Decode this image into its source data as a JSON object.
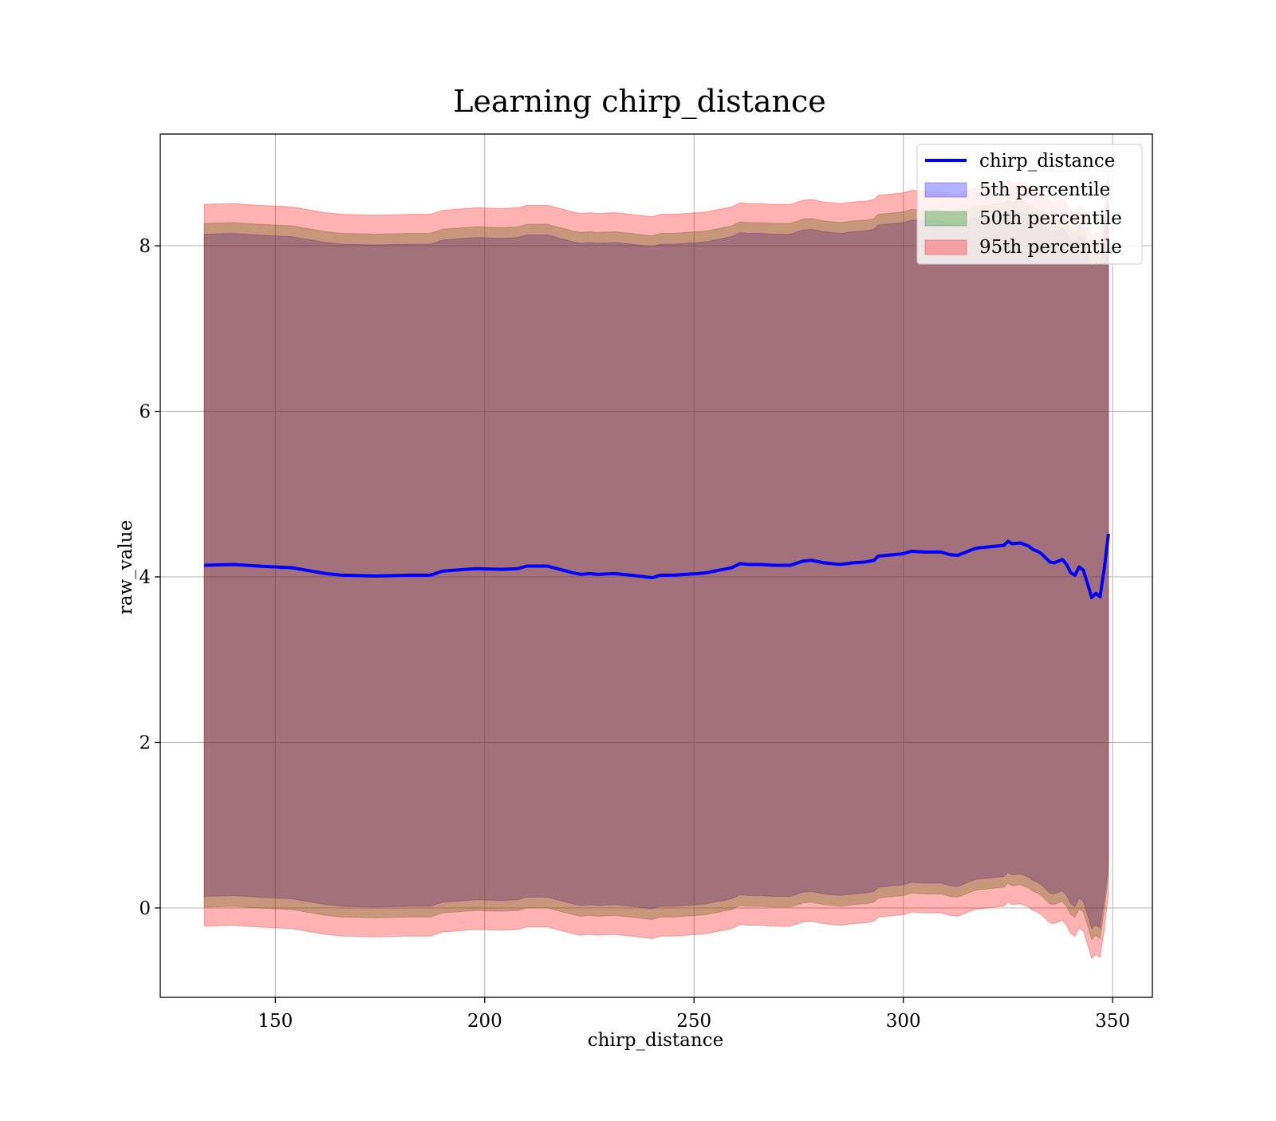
{
  "chart_data": {
    "type": "area",
    "title": "Learning chirp_distance",
    "xlabel": "chirp_distance",
    "ylabel": "raw_value",
    "xlim": [
      122.5,
      359.5
    ],
    "ylim": [
      -1.08,
      9.35
    ],
    "xticks": [
      150,
      200,
      250,
      300,
      350
    ],
    "yticks": [
      0,
      2,
      4,
      6,
      8
    ],
    "grid": true,
    "legend_position": "top-right",
    "x": [
      133,
      140,
      146,
      154,
      162,
      166,
      174,
      182,
      187,
      190,
      198,
      204,
      208,
      210,
      215,
      221,
      223,
      225,
      227,
      231,
      235,
      240,
      242,
      245,
      251,
      253,
      256,
      259,
      261,
      263,
      266,
      269,
      273,
      276,
      278,
      281,
      285,
      288,
      291,
      293,
      294,
      296,
      300,
      302,
      305,
      307,
      309,
      311,
      313,
      315,
      317,
      318,
      320,
      322,
      324,
      325,
      326,
      328,
      330,
      331,
      332,
      333,
      335,
      336,
      338,
      339,
      340,
      341,
      342,
      343,
      344,
      345,
      346,
      347,
      348,
      349
    ],
    "series": [
      {
        "name": "chirp_distance",
        "color": "#0000ff",
        "values": [
          4.14,
          4.15,
          4.13,
          4.11,
          4.04,
          4.02,
          4.01,
          4.02,
          4.02,
          4.07,
          4.1,
          4.09,
          4.1,
          4.13,
          4.13,
          4.05,
          4.03,
          4.04,
          4.03,
          4.04,
          4.02,
          3.99,
          4.02,
          4.02,
          4.04,
          4.05,
          4.08,
          4.11,
          4.16,
          4.15,
          4.15,
          4.14,
          4.14,
          4.19,
          4.2,
          4.17,
          4.15,
          4.17,
          4.18,
          4.2,
          4.25,
          4.26,
          4.28,
          4.31,
          4.3,
          4.3,
          4.3,
          4.27,
          4.26,
          4.3,
          4.34,
          4.35,
          4.36,
          4.37,
          4.38,
          4.43,
          4.4,
          4.41,
          4.37,
          4.33,
          4.31,
          4.28,
          4.18,
          4.17,
          4.21,
          4.15,
          4.05,
          4.02,
          4.12,
          4.08,
          3.92,
          3.75,
          3.8,
          3.76,
          4.1,
          4.52
        ]
      }
    ],
    "bands": [
      {
        "name": "5th percentile",
        "color": "#0000ff",
        "lower": [
          0.14,
          0.15,
          0.13,
          0.11,
          0.04,
          0.02,
          0.01,
          0.02,
          0.02,
          0.07,
          0.1,
          0.09,
          0.1,
          0.13,
          0.13,
          0.05,
          0.03,
          0.04,
          0.03,
          0.04,
          0.02,
          -0.01,
          0.02,
          0.02,
          0.04,
          0.05,
          0.08,
          0.11,
          0.16,
          0.15,
          0.15,
          0.14,
          0.14,
          0.19,
          0.2,
          0.17,
          0.15,
          0.17,
          0.18,
          0.2,
          0.25,
          0.26,
          0.28,
          0.31,
          0.3,
          0.3,
          0.3,
          0.27,
          0.26,
          0.3,
          0.34,
          0.35,
          0.36,
          0.37,
          0.38,
          0.43,
          0.4,
          0.41,
          0.37,
          0.33,
          0.31,
          0.28,
          0.18,
          0.17,
          0.21,
          0.15,
          0.05,
          0.02,
          0.12,
          0.08,
          -0.08,
          -0.25,
          -0.2,
          -0.24,
          0.1,
          0.52
        ],
        "upper": [
          8.14,
          8.15,
          8.13,
          8.11,
          8.04,
          8.02,
          8.01,
          8.02,
          8.02,
          8.07,
          8.1,
          8.09,
          8.1,
          8.13,
          8.13,
          8.05,
          8.03,
          8.04,
          8.03,
          8.04,
          8.02,
          7.99,
          8.02,
          8.02,
          8.04,
          8.05,
          8.08,
          8.11,
          8.16,
          8.15,
          8.15,
          8.14,
          8.14,
          8.19,
          8.2,
          8.17,
          8.15,
          8.17,
          8.18,
          8.2,
          8.25,
          8.26,
          8.28,
          8.31,
          8.3,
          8.3,
          8.3,
          8.27,
          8.26,
          8.3,
          8.34,
          8.35,
          8.36,
          8.37,
          8.38,
          8.43,
          8.4,
          8.41,
          8.37,
          8.33,
          8.31,
          8.28,
          8.18,
          8.17,
          8.21,
          8.15,
          8.05,
          8.02,
          8.12,
          8.08,
          7.92,
          7.75,
          7.8,
          7.76,
          8.1,
          8.52
        ]
      },
      {
        "name": "50th percentile",
        "color": "#008000",
        "lower": [
          0.01,
          0.02,
          0.0,
          -0.02,
          -0.09,
          -0.11,
          -0.12,
          -0.11,
          -0.11,
          -0.06,
          -0.03,
          -0.04,
          -0.03,
          0.0,
          0.0,
          -0.08,
          -0.1,
          -0.09,
          -0.1,
          -0.09,
          -0.11,
          -0.14,
          -0.11,
          -0.11,
          -0.09,
          -0.08,
          -0.05,
          -0.02,
          0.03,
          0.02,
          0.02,
          0.01,
          0.01,
          0.06,
          0.07,
          0.04,
          0.02,
          0.04,
          0.05,
          0.07,
          0.12,
          0.13,
          0.15,
          0.18,
          0.17,
          0.17,
          0.17,
          0.14,
          0.13,
          0.17,
          0.21,
          0.22,
          0.23,
          0.24,
          0.25,
          0.3,
          0.27,
          0.28,
          0.24,
          0.2,
          0.18,
          0.15,
          0.05,
          0.04,
          0.08,
          0.02,
          -0.08,
          -0.11,
          -0.01,
          -0.05,
          -0.21,
          -0.38,
          -0.33,
          -0.37,
          -0.03,
          0.39
        ],
        "upper": [
          8.27,
          8.28,
          8.26,
          8.24,
          8.17,
          8.15,
          8.14,
          8.15,
          8.15,
          8.2,
          8.23,
          8.22,
          8.23,
          8.26,
          8.26,
          8.18,
          8.16,
          8.17,
          8.16,
          8.17,
          8.15,
          8.12,
          8.15,
          8.15,
          8.17,
          8.18,
          8.21,
          8.24,
          8.29,
          8.28,
          8.28,
          8.27,
          8.27,
          8.32,
          8.33,
          8.3,
          8.28,
          8.3,
          8.31,
          8.33,
          8.38,
          8.39,
          8.41,
          8.44,
          8.43,
          8.43,
          8.43,
          8.4,
          8.39,
          8.43,
          8.47,
          8.48,
          8.49,
          8.5,
          8.51,
          8.56,
          8.53,
          8.54,
          8.5,
          8.46,
          8.44,
          8.41,
          8.31,
          8.3,
          8.34,
          8.28,
          8.18,
          8.15,
          8.25,
          8.21,
          8.05,
          7.88,
          7.93,
          7.89,
          8.23,
          8.65
        ]
      },
      {
        "name": "95th percentile",
        "color": "#ff0000",
        "lower": [
          -0.22,
          -0.21,
          -0.23,
          -0.25,
          -0.32,
          -0.34,
          -0.35,
          -0.34,
          -0.34,
          -0.29,
          -0.26,
          -0.27,
          -0.26,
          -0.23,
          -0.23,
          -0.31,
          -0.33,
          -0.32,
          -0.33,
          -0.32,
          -0.34,
          -0.37,
          -0.34,
          -0.34,
          -0.32,
          -0.31,
          -0.28,
          -0.25,
          -0.2,
          -0.21,
          -0.21,
          -0.22,
          -0.22,
          -0.17,
          -0.16,
          -0.19,
          -0.21,
          -0.19,
          -0.18,
          -0.16,
          -0.11,
          -0.1,
          -0.08,
          -0.05,
          -0.06,
          -0.06,
          -0.06,
          -0.09,
          -0.1,
          -0.06,
          -0.02,
          -0.01,
          0.0,
          0.01,
          0.02,
          0.07,
          0.04,
          0.05,
          0.01,
          -0.03,
          -0.05,
          -0.08,
          -0.18,
          -0.19,
          -0.15,
          -0.21,
          -0.31,
          -0.34,
          -0.24,
          -0.28,
          -0.44,
          -0.61,
          -0.56,
          -0.6,
          -0.26,
          0.16
        ],
        "upper": [
          8.5,
          8.51,
          8.49,
          8.47,
          8.4,
          8.38,
          8.37,
          8.38,
          8.38,
          8.43,
          8.46,
          8.45,
          8.46,
          8.49,
          8.49,
          8.41,
          8.39,
          8.4,
          8.39,
          8.4,
          8.38,
          8.35,
          8.38,
          8.38,
          8.4,
          8.41,
          8.44,
          8.47,
          8.52,
          8.51,
          8.51,
          8.5,
          8.5,
          8.55,
          8.56,
          8.53,
          8.51,
          8.53,
          8.54,
          8.56,
          8.61,
          8.62,
          8.64,
          8.67,
          8.66,
          8.66,
          8.66,
          8.63,
          8.62,
          8.66,
          8.7,
          8.71,
          8.72,
          8.73,
          8.74,
          8.79,
          8.76,
          8.77,
          8.73,
          8.69,
          8.67,
          8.64,
          8.54,
          8.53,
          8.57,
          8.51,
          8.41,
          8.38,
          8.48,
          8.44,
          8.28,
          8.11,
          8.16,
          8.12,
          8.46,
          8.88
        ]
      }
    ]
  }
}
